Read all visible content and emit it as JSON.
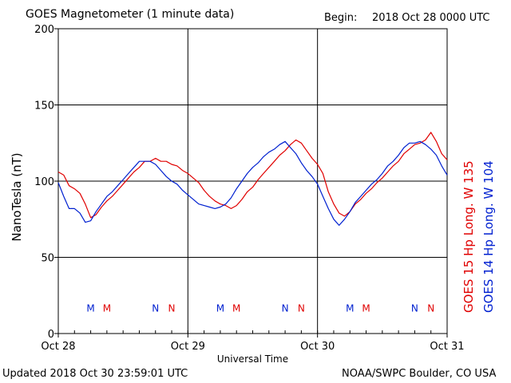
{
  "header": {
    "title": "GOES Magnetometer (1 minute data)",
    "begin_label": "Begin:",
    "begin_value": "2018 Oct 28 0000 UTC"
  },
  "footer": {
    "updated": "Updated 2018 Oct 30 23:59:01 UTC",
    "credit": "NOAA/SWPC Boulder, CO USA"
  },
  "colors": {
    "goes15": "#e00000",
    "goes14": "#0020d0",
    "grid": "#000000"
  },
  "chart_data": {
    "type": "line",
    "title": "GOES Magnetometer (1 minute data)",
    "xlabel": "Universal Time",
    "ylabel": "NanoTesla (nT)",
    "xlim": [
      0,
      72
    ],
    "ylim": [
      0,
      200
    ],
    "x_unit": "hours since 2018 Oct 28 0000 UTC",
    "xticks": [
      {
        "x": 0,
        "label": "Oct 28"
      },
      {
        "x": 24,
        "label": "Oct 29"
      },
      {
        "x": 48,
        "label": "Oct 30"
      },
      {
        "x": 72,
        "label": "Oct 31"
      }
    ],
    "yticks": [
      0,
      50,
      100,
      150,
      200
    ],
    "grid": true,
    "legend": "right, vertical",
    "series": [
      {
        "name": "GOES 15 Hp  Long. W 135",
        "color": "#e00000",
        "x": [
          0,
          1,
          2,
          3,
          4,
          5,
          6,
          7,
          8,
          9,
          10,
          11,
          12,
          13,
          14,
          15,
          16,
          17,
          18,
          19,
          20,
          21,
          22,
          23,
          24,
          25,
          26,
          27,
          28,
          29,
          30,
          31,
          32,
          33,
          34,
          35,
          36,
          37,
          38,
          39,
          40,
          41,
          42,
          43,
          44,
          45,
          46,
          47,
          48,
          49,
          50,
          51,
          52,
          53,
          54,
          55,
          56,
          57,
          58,
          59,
          60,
          61,
          62,
          63,
          64,
          65,
          66,
          67,
          68,
          69,
          70,
          71,
          72
        ],
        "values": [
          106,
          104,
          97,
          95,
          92,
          85,
          76,
          78,
          83,
          87,
          90,
          94,
          98,
          102,
          106,
          109,
          113,
          113,
          115,
          113,
          113,
          111,
          110,
          107,
          105,
          102,
          99,
          94,
          90,
          87,
          85,
          84,
          82,
          84,
          88,
          93,
          96,
          101,
          105,
          109,
          113,
          117,
          120,
          124,
          127,
          125,
          120,
          115,
          111,
          105,
          93,
          85,
          79,
          77,
          80,
          85,
          88,
          92,
          95,
          99,
          102,
          106,
          110,
          113,
          118,
          121,
          124,
          125,
          127,
          132,
          126,
          118,
          114
        ]
      },
      {
        "name": "GOES 14 Hp  Long. W 104",
        "color": "#0020d0",
        "x": [
          0,
          1,
          2,
          3,
          4,
          5,
          6,
          7,
          8,
          9,
          10,
          11,
          12,
          13,
          14,
          15,
          16,
          17,
          18,
          19,
          20,
          21,
          22,
          23,
          24,
          25,
          26,
          27,
          28,
          29,
          30,
          31,
          32,
          33,
          34,
          35,
          36,
          37,
          38,
          39,
          40,
          41,
          42,
          43,
          44,
          45,
          46,
          47,
          48,
          49,
          50,
          51,
          52,
          53,
          54,
          55,
          56,
          57,
          58,
          59,
          60,
          61,
          62,
          63,
          64,
          65,
          66,
          67,
          68,
          69,
          70,
          71,
          72
        ],
        "values": [
          99,
          90,
          82,
          82,
          79,
          73,
          74,
          80,
          85,
          90,
          93,
          97,
          101,
          105,
          109,
          113,
          113,
          113,
          111,
          107,
          103,
          100,
          98,
          94,
          91,
          88,
          85,
          84,
          83,
          82,
          83,
          85,
          89,
          95,
          100,
          105,
          109,
          112,
          116,
          119,
          121,
          124,
          126,
          122,
          118,
          112,
          107,
          103,
          98,
          90,
          82,
          75,
          71,
          75,
          80,
          86,
          90,
          94,
          98,
          101,
          105,
          110,
          113,
          117,
          122,
          125,
          125,
          126,
          124,
          121,
          117,
          110,
          104
        ]
      }
    ],
    "markers": [
      {
        "x": 6,
        "label": "M",
        "color": "#0020d0"
      },
      {
        "x": 9,
        "label": "M",
        "color": "#e00000"
      },
      {
        "x": 18,
        "label": "N",
        "color": "#0020d0"
      },
      {
        "x": 21,
        "label": "N",
        "color": "#e00000"
      },
      {
        "x": 30,
        "label": "M",
        "color": "#0020d0"
      },
      {
        "x": 33,
        "label": "M",
        "color": "#e00000"
      },
      {
        "x": 42,
        "label": "N",
        "color": "#0020d0"
      },
      {
        "x": 45,
        "label": "N",
        "color": "#e00000"
      },
      {
        "x": 54,
        "label": "M",
        "color": "#0020d0"
      },
      {
        "x": 57,
        "label": "M",
        "color": "#e00000"
      },
      {
        "x": 66,
        "label": "N",
        "color": "#0020d0"
      },
      {
        "x": 69,
        "label": "N",
        "color": "#e00000"
      }
    ],
    "marker_y": 17
  }
}
